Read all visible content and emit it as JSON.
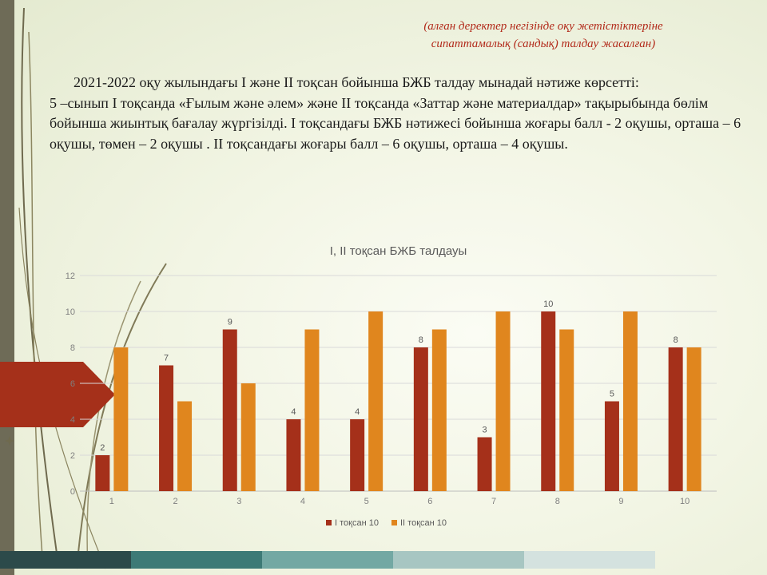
{
  "header": {
    "note_line1": "(алған деректер негізінде оқу жетістіктеріне",
    "note_line2": "сипаттамалық (сандық) талдау жасалған)"
  },
  "description": {
    "p1": "2021-2022 оқу жылындағы  I және II тоқсан бойынша БЖБ талдау мынадай нәтиже көрсетті:",
    "p2": "5 –сынып I тоқсанда «Ғылым және әлем» және II тоқсанда «Заттар және материалдар» тақырыбында бөлім бойынша жиынтық бағалау жүргізілді.  I тоқсандағы БЖБ нәтижесі бойынша жоғары балл -  2 оқушы, орташа – 6 оқушы, төмен – 2 оқушы . II тоқсандағы жоғары балл – 6 оқушы, орташа – 4 оқушы."
  },
  "chart_data": {
    "type": "bar",
    "title": "I, II тоқсан БЖБ талдауы",
    "categories": [
      "1",
      "2",
      "3",
      "4",
      "5",
      "6",
      "7",
      "8",
      "9",
      "10"
    ],
    "series": [
      {
        "name": "I тоқсан 10",
        "values": [
          2,
          7,
          9,
          4,
          4,
          8,
          3,
          10,
          5,
          8
        ],
        "color": "#a5301a",
        "data_labels": true
      },
      {
        "name": "II тоқсан 10",
        "values": [
          8,
          5,
          6,
          9,
          10,
          9,
          10,
          9,
          10,
          8
        ],
        "color": "#e0861e",
        "data_labels": false
      }
    ],
    "ylim": [
      0,
      12
    ],
    "yticks": [
      0,
      2,
      4,
      6,
      8,
      10,
      12
    ],
    "grid": true,
    "legend": "bottom"
  },
  "colors": {
    "text_note": "#b22a1a",
    "left_bar": "#6e6b57",
    "arrow": "#a5301a"
  }
}
